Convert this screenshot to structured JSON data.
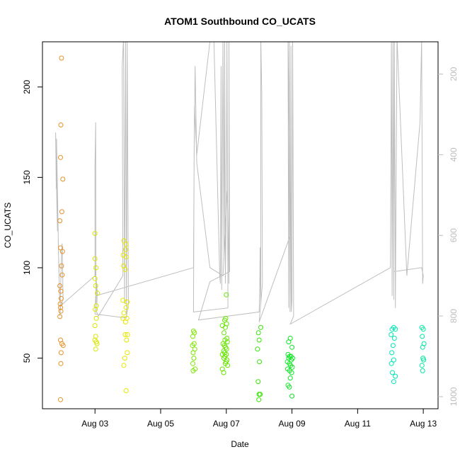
{
  "chart_data": {
    "type": "scatter",
    "title": "ATOM1 Southbound CO_UCATS",
    "xlabel": "Date",
    "ylabel": "CO_UCATS",
    "x_ticks": [
      "Aug 03",
      "Aug 05",
      "Aug 07",
      "Aug 09",
      "Aug 11",
      "Aug 13"
    ],
    "x_tick_days": [
      3,
      5,
      7,
      9,
      11,
      13
    ],
    "xlim": [
      1.4,
      13.45
    ],
    "ylim": [
      22,
      225
    ],
    "y_ticks": [
      50,
      100,
      150,
      200
    ],
    "y2_ticks": [
      200,
      400,
      600,
      800,
      1000
    ],
    "y2lim": [
      120,
      1030
    ],
    "y2_reversed": true,
    "grid": false,
    "colors": {
      "profile_line": "#bebebe",
      "right_axis": "#bdbdbd",
      "axis": "#000000"
    },
    "series": [
      {
        "color": "#e69126",
        "points": [
          [
            1.98,
            216
          ],
          [
            1.96,
            179
          ],
          [
            1.95,
            161
          ],
          [
            2.02,
            149
          ],
          [
            1.99,
            131
          ],
          [
            1.93,
            126
          ],
          [
            1.95,
            111
          ],
          [
            2.01,
            109
          ],
          [
            1.98,
            101
          ],
          [
            2.0,
            96
          ],
          [
            1.93,
            90
          ],
          [
            1.96,
            87
          ],
          [
            1.97,
            83
          ],
          [
            1.94,
            80
          ],
          [
            1.95,
            78
          ],
          [
            1.96,
            76
          ],
          [
            1.93,
            73
          ],
          [
            1.95,
            60
          ],
          [
            1.99,
            58
          ],
          [
            2.03,
            57
          ],
          [
            1.97,
            53
          ],
          [
            1.96,
            47
          ],
          [
            1.95,
            27
          ]
        ]
      },
      {
        "color": "#d9e600",
        "points": [
          [
            3.0,
            119
          ],
          [
            3.0,
            105
          ],
          [
            3.03,
            100
          ],
          [
            3.0,
            94
          ],
          [
            3.02,
            90
          ],
          [
            3.07,
            86
          ],
          [
            3.04,
            79
          ],
          [
            3.01,
            77
          ],
          [
            3.04,
            72
          ],
          [
            3.0,
            68
          ],
          [
            3.02,
            62
          ],
          [
            3.0,
            60
          ],
          [
            3.04,
            59
          ],
          [
            3.06,
            58
          ],
          [
            3.02,
            55
          ]
        ]
      },
      {
        "color": "#e6e600",
        "points": [
          [
            3.88,
            115
          ],
          [
            3.95,
            113
          ],
          [
            3.93,
            110
          ],
          [
            3.86,
            107
          ],
          [
            3.95,
            106
          ],
          [
            3.87,
            101
          ],
          [
            3.92,
            99
          ],
          [
            3.85,
            82
          ],
          [
            3.98,
            81
          ],
          [
            3.95,
            78
          ],
          [
            3.88,
            75
          ],
          [
            3.85,
            72
          ],
          [
            3.97,
            72
          ],
          [
            3.93,
            70
          ],
          [
            3.99,
            63
          ],
          [
            3.92,
            63
          ],
          [
            3.96,
            60
          ],
          [
            3.98,
            53
          ],
          [
            3.91,
            50
          ],
          [
            3.88,
            46
          ],
          [
            3.95,
            32
          ]
        ]
      },
      {
        "color": "#7de600",
        "points": [
          [
            6.0,
            65
          ],
          [
            6.03,
            64
          ],
          [
            5.98,
            62
          ],
          [
            6.02,
            58
          ],
          [
            5.97,
            57
          ],
          [
            6.04,
            55
          ],
          [
            5.99,
            53
          ],
          [
            6.01,
            50
          ],
          [
            5.98,
            47
          ],
          [
            6.05,
            44
          ],
          [
            5.99,
            43
          ]
        ]
      },
      {
        "color": "#66e600",
        "points": [
          [
            6.98,
            72
          ],
          [
            6.95,
            71
          ],
          [
            7.01,
            69
          ],
          [
            6.88,
            68
          ],
          [
            6.97,
            67
          ],
          [
            6.93,
            64
          ],
          [
            7.02,
            61
          ],
          [
            6.96,
            60
          ],
          [
            7.03,
            59
          ],
          [
            6.9,
            58
          ],
          [
            6.94,
            57
          ],
          [
            6.98,
            56
          ],
          [
            7.01,
            55
          ],
          [
            6.92,
            54
          ],
          [
            6.95,
            53
          ],
          [
            7.0,
            52
          ],
          [
            6.88,
            52
          ],
          [
            6.96,
            51
          ],
          [
            6.93,
            50
          ],
          [
            7.02,
            49
          ],
          [
            6.99,
            48
          ],
          [
            6.97,
            47
          ],
          [
            7.04,
            46
          ],
          [
            6.88,
            44
          ],
          [
            6.92,
            42
          ],
          [
            7.0,
            85
          ]
        ]
      },
      {
        "color": "#33e600",
        "points": [
          [
            8.05,
            67
          ],
          [
            7.98,
            64
          ],
          [
            8.0,
            60
          ],
          [
            7.95,
            55
          ],
          [
            8.01,
            48
          ],
          [
            7.97,
            37
          ],
          [
            8.0,
            30
          ],
          [
            8.03,
            30
          ],
          [
            7.99,
            27
          ]
        ]
      },
      {
        "color": "#10e626",
        "points": [
          [
            8.95,
            61
          ],
          [
            8.9,
            59
          ],
          [
            9.0,
            56
          ],
          [
            8.88,
            52
          ],
          [
            8.93,
            51
          ],
          [
            8.97,
            51
          ],
          [
            9.02,
            50
          ],
          [
            8.9,
            50
          ],
          [
            8.98,
            49
          ],
          [
            8.86,
            48
          ],
          [
            8.92,
            47
          ],
          [
            8.96,
            46
          ],
          [
            9.01,
            45
          ],
          [
            8.87,
            44
          ],
          [
            8.93,
            43
          ],
          [
            8.99,
            42
          ],
          [
            8.95,
            39
          ],
          [
            8.88,
            35
          ],
          [
            8.92,
            34
          ],
          [
            9.0,
            29
          ]
        ]
      },
      {
        "color": "#00e6b3",
        "points": [
          [
            12.1,
            67
          ],
          [
            12.05,
            66
          ],
          [
            12.15,
            66
          ],
          [
            12.02,
            63
          ],
          [
            12.12,
            61
          ],
          [
            12.08,
            57
          ],
          [
            12.04,
            53
          ],
          [
            12.1,
            49
          ],
          [
            12.03,
            47
          ],
          [
            12.06,
            42
          ],
          [
            12.15,
            40
          ],
          [
            12.1,
            37
          ]
        ]
      },
      {
        "color": "#00e6a0",
        "points": [
          [
            12.96,
            67
          ],
          [
            13.0,
            66
          ],
          [
            12.97,
            62
          ],
          [
            13.02,
            58
          ],
          [
            12.98,
            56
          ],
          [
            12.99,
            50
          ],
          [
            13.01,
            49
          ],
          [
            12.96,
            46
          ],
          [
            12.98,
            43
          ]
        ]
      }
    ],
    "profile_line": {
      "y_axis": "right",
      "points": [
        [
          1.82,
          485
        ],
        [
          1.8,
          345
        ],
        [
          1.84,
          530
        ],
        [
          1.86,
          590
        ],
        [
          1.83,
          360
        ],
        [
          1.9,
          690
        ],
        [
          1.88,
          610
        ],
        [
          1.92,
          750
        ],
        [
          1.95,
          780
        ],
        [
          1.93,
          800
        ],
        [
          1.98,
          650
        ],
        [
          2.0,
          620
        ],
        [
          2.03,
          760
        ],
        [
          1.95,
          775
        ],
        [
          3.0,
          700
        ],
        [
          3.0,
          430
        ],
        [
          3.02,
          320
        ],
        [
          3.03,
          770
        ],
        [
          3.05,
          725
        ],
        [
          3.0,
          680
        ],
        [
          3.07,
          740
        ],
        [
          3.05,
          790
        ],
        [
          3.1,
          800
        ],
        [
          3.85,
          700
        ],
        [
          3.83,
          180
        ],
        [
          3.87,
          110
        ],
        [
          3.9,
          770
        ],
        [
          3.93,
          110
        ],
        [
          3.96,
          800
        ],
        [
          3.98,
          110
        ],
        [
          4.02,
          770
        ],
        [
          3.95,
          805
        ],
        [
          3.0,
          795
        ],
        [
          3.02,
          750
        ],
        [
          6.0,
          680
        ],
        [
          6.03,
          280
        ],
        [
          6.1,
          400
        ],
        [
          6.5,
          120
        ],
        [
          6.62,
          110
        ],
        [
          6.8,
          700
        ],
        [
          6.82,
          720
        ],
        [
          6.84,
          180
        ],
        [
          6.86,
          735
        ],
        [
          6.9,
          110
        ],
        [
          6.93,
          660
        ],
        [
          6.95,
          110
        ],
        [
          6.97,
          720
        ],
        [
          7.0,
          520
        ],
        [
          7.02,
          110
        ],
        [
          7.05,
          780
        ],
        [
          6.0,
          790
        ],
        [
          6.02,
          400
        ],
        [
          6.05,
          180
        ],
        [
          6.1,
          420
        ],
        [
          6.5,
          680
        ],
        [
          6.9,
          700
        ],
        [
          7.03,
          490
        ],
        [
          7.07,
          660
        ],
        [
          7.08,
          720
        ],
        [
          7.08,
          110
        ],
        [
          7.1,
          690
        ],
        [
          6.5,
          715
        ],
        [
          6.15,
          810
        ],
        [
          8.0,
          790
        ],
        [
          8.02,
          730
        ],
        [
          8.03,
          630
        ],
        [
          8.05,
          770
        ],
        [
          8.05,
          110
        ],
        [
          8.08,
          250
        ],
        [
          8.1,
          720
        ],
        [
          8.0,
          815
        ],
        [
          8.95,
          600
        ],
        [
          8.88,
          110
        ],
        [
          8.9,
          780
        ],
        [
          8.92,
          120
        ],
        [
          8.94,
          790
        ],
        [
          8.95,
          720
        ],
        [
          8.97,
          130
        ],
        [
          8.98,
          790
        ],
        [
          9.0,
          760
        ],
        [
          9.02,
          110
        ],
        [
          9.05,
          800
        ],
        [
          8.95,
          820
        ],
        [
          12.0,
          680
        ],
        [
          12.03,
          110
        ],
        [
          12.05,
          750
        ],
        [
          12.08,
          110
        ],
        [
          12.1,
          760
        ],
        [
          12.12,
          120
        ],
        [
          12.15,
          780
        ],
        [
          12.2,
          110
        ],
        [
          12.5,
          700
        ],
        [
          12.9,
          320
        ],
        [
          12.95,
          110
        ],
        [
          12.98,
          720
        ],
        [
          13.0,
          700
        ],
        [
          12.95,
          680
        ],
        [
          12.1,
          690
        ]
      ]
    }
  }
}
